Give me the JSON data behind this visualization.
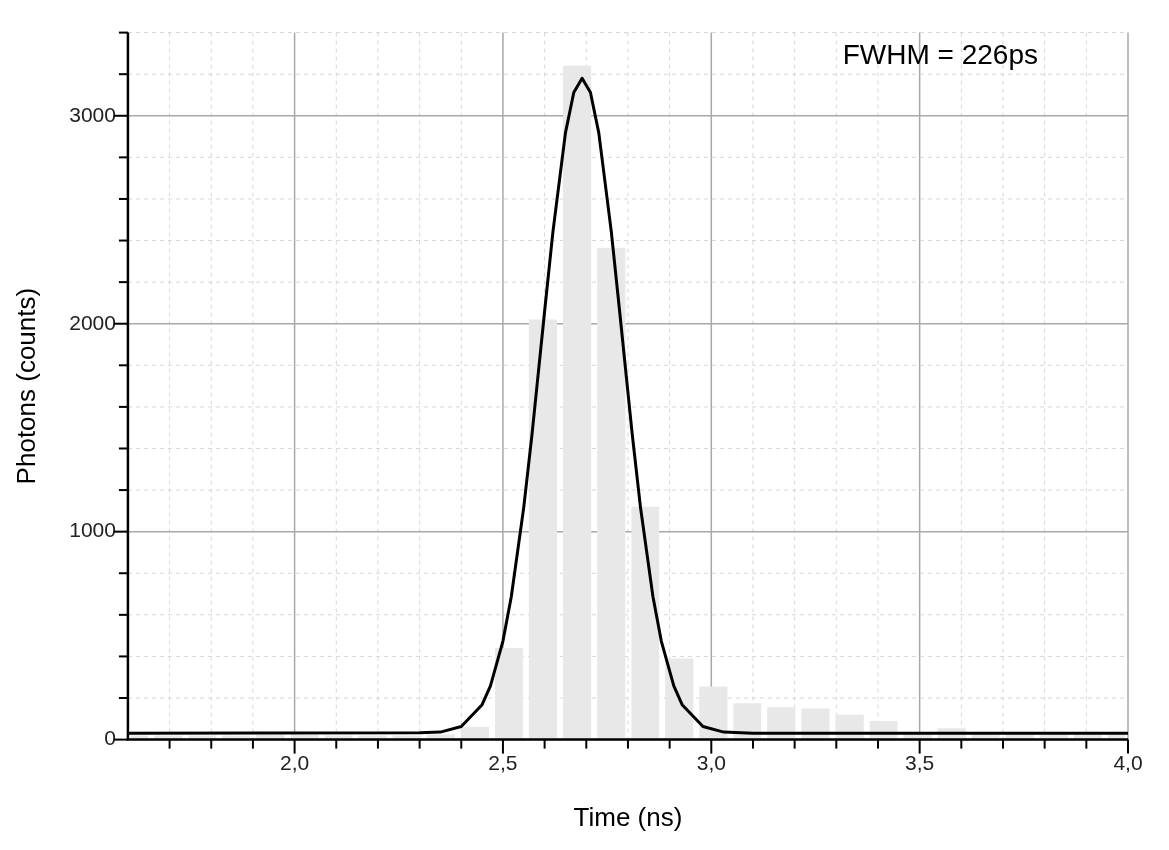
{
  "chart_data": {
    "type": "histogram",
    "xlabel": "Time (ns)",
    "ylabel": "Photons (counts)",
    "annotations": [
      "FWHM = 226ps"
    ],
    "bins": [
      1.6,
      1.656,
      1.738,
      1.819,
      1.901,
      1.983,
      2.065,
      2.146,
      2.228,
      2.31,
      2.392,
      2.474,
      2.555,
      2.637,
      2.719,
      2.801,
      2.882,
      2.964,
      3.046,
      3.127,
      3.209,
      3.291,
      3.373,
      3.454,
      3.536,
      3.618,
      3.699,
      3.781,
      3.863,
      3.944,
      4.0
    ],
    "values": [
      20,
      20,
      20,
      20,
      25,
      25,
      20,
      20,
      20,
      25,
      60,
      440,
      2020,
      3240,
      2365,
      1120,
      390,
      255,
      175,
      155,
      150,
      120,
      90,
      25,
      55,
      25,
      25,
      25,
      25,
      25
    ],
    "color": "#e8e8e8",
    "series": [
      {
        "type": "line",
        "color": "#000000",
        "x": [
          1.6,
          2.3,
          2.35,
          2.4,
          2.45,
          2.47,
          2.5,
          2.52,
          2.55,
          2.57,
          2.6,
          2.62,
          2.65,
          2.67,
          2.69,
          2.71,
          2.73,
          2.76,
          2.78,
          2.81,
          2.83,
          2.86,
          2.88,
          2.91,
          2.93,
          2.98,
          3.03,
          3.1,
          4.0
        ],
        "values": [
          30,
          33,
          36,
          63,
          168,
          258,
          474,
          687,
          1118,
          1473,
          2060,
          2443,
          2918,
          3112,
          3180,
          3112,
          2918,
          2443,
          2060,
          1473,
          1118,
          687,
          474,
          258,
          168,
          63,
          36,
          30,
          30
        ]
      }
    ],
    "xlim": [
      1.6,
      4.0
    ],
    "xticks": [
      {
        "value": 1.7,
        "label": null
      },
      {
        "value": 1.8,
        "label": null
      },
      {
        "value": 1.9,
        "label": null
      },
      {
        "value": 2.0,
        "label": "2,0"
      },
      {
        "value": 2.1,
        "label": null
      },
      {
        "value": 2.2,
        "label": null
      },
      {
        "value": 2.3,
        "label": null
      },
      {
        "value": 2.4,
        "label": null
      },
      {
        "value": 2.5,
        "label": "2,5"
      },
      {
        "value": 2.6,
        "label": null
      },
      {
        "value": 2.7,
        "label": null
      },
      {
        "value": 2.8,
        "label": null
      },
      {
        "value": 2.9,
        "label": null
      },
      {
        "value": 3.0,
        "label": "3,0"
      },
      {
        "value": 3.1,
        "label": null
      },
      {
        "value": 3.2,
        "label": null
      },
      {
        "value": 3.3,
        "label": null
      },
      {
        "value": 3.4,
        "label": null
      },
      {
        "value": 3.5,
        "label": "3,5"
      },
      {
        "value": 3.6,
        "label": null
      },
      {
        "value": 3.7,
        "label": null
      },
      {
        "value": 3.8,
        "label": null
      },
      {
        "value": 3.9,
        "label": null
      },
      {
        "value": 4.0,
        "label": "4,0"
      }
    ],
    "ylim": [
      0,
      3400
    ],
    "yticks": [
      0,
      {
        "value": 200,
        "label": null
      },
      {
        "value": 400,
        "label": null
      },
      {
        "value": 600,
        "label": null
      },
      {
        "value": 800,
        "label": null
      },
      1000,
      {
        "value": 1200,
        "label": null
      },
      {
        "value": 1400,
        "label": null
      },
      {
        "value": 1600,
        "label": null
      },
      {
        "value": 1800,
        "label": null
      },
      2000,
      {
        "value": 2200,
        "label": null
      },
      {
        "value": 2400,
        "label": null
      },
      {
        "value": 2600,
        "label": null
      },
      {
        "value": 2800,
        "label": null
      },
      3000,
      {
        "value": 3200,
        "label": null
      },
      {
        "value": 3400,
        "label": null
      }
    ],
    "grid": true,
    "legend": false,
    "marker": "none",
    "line_style": "solid"
  }
}
